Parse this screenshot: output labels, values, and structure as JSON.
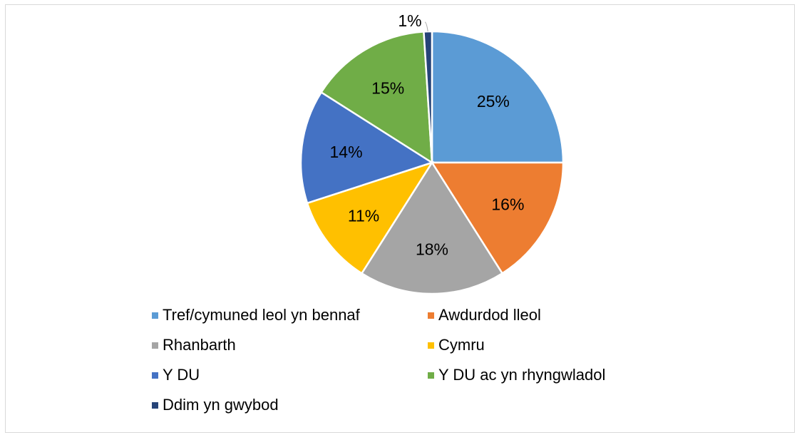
{
  "chart_data": {
    "type": "pie",
    "title": "",
    "label_format": "percent",
    "slices": [
      {
        "name": "Tref/cymuned leol yn bennaf",
        "value": 25,
        "label": "25%",
        "color": "#5b9bd5"
      },
      {
        "name": "Awdurdod lleol",
        "value": 16,
        "label": "16%",
        "color": "#ed7d31"
      },
      {
        "name": "Rhanbarth",
        "value": 18,
        "label": "18%",
        "color": "#a5a5a5"
      },
      {
        "name": "Cymru",
        "value": 11,
        "label": "11%",
        "color": "#ffc000"
      },
      {
        "name": "Y DU",
        "value": 14,
        "label": "14%",
        "color": "#4472c4"
      },
      {
        "name": "Y DU ac yn rhyngwladol",
        "value": 15,
        "label": "15%",
        "color": "#70ad47"
      },
      {
        "name": "Ddim yn gwybod",
        "value": 1,
        "label": "1%",
        "color": "#264478"
      }
    ],
    "legend": {
      "position": "bottom",
      "columns": 2
    }
  }
}
